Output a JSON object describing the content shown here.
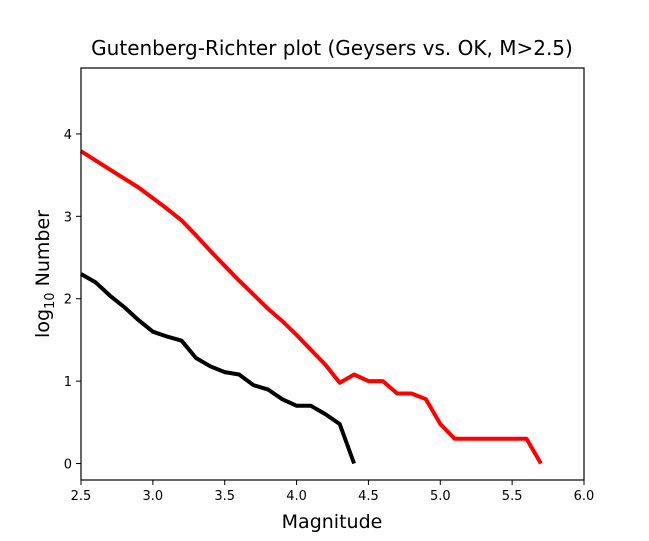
{
  "chart_data": {
    "type": "line",
    "title": "Gutenberg-Richter plot (Geysers vs. OK, M>2.5)",
    "xlabel": "Magnitude",
    "ylabel": {
      "base": "log",
      "subscript": "10",
      "rest": " Number"
    },
    "xlim": [
      2.5,
      6.0
    ],
    "ylim": [
      -0.2,
      4.8
    ],
    "xticks": [
      "2.5",
      "3.0",
      "3.5",
      "4.0",
      "4.5",
      "5.0",
      "5.5",
      "6.0"
    ],
    "yticks": [
      "0",
      "1",
      "2",
      "3",
      "4"
    ],
    "grid": false,
    "legend": "none",
    "series": [
      {
        "color": "#ff0000",
        "x": [
          2.5,
          2.6,
          2.7,
          2.8,
          2.9,
          3.0,
          3.1,
          3.2,
          3.3,
          3.4,
          3.5,
          3.6,
          3.7,
          3.8,
          3.9,
          4.0,
          4.1,
          4.2,
          4.3,
          4.4,
          4.5,
          4.6,
          4.7,
          4.8,
          4.9,
          5.0,
          5.1,
          5.2,
          5.3,
          5.4,
          5.5,
          5.6,
          5.7
        ],
        "y": [
          3.79,
          3.68,
          3.57,
          3.46,
          3.35,
          3.22,
          3.09,
          2.95,
          2.77,
          2.58,
          2.4,
          2.22,
          2.05,
          1.88,
          1.73,
          1.56,
          1.38,
          1.2,
          0.98,
          1.08,
          1.0,
          1.0,
          0.85,
          0.85,
          0.78,
          0.48,
          0.3,
          0.3,
          0.3,
          0.3,
          0.3,
          0.3,
          0.0
        ]
      },
      {
        "color": "#000000",
        "x": [
          2.5,
          2.6,
          2.7,
          2.8,
          2.9,
          3.0,
          3.1,
          3.2,
          3.3,
          3.4,
          3.5,
          3.6,
          3.7,
          3.8,
          3.9,
          4.0,
          4.1,
          4.2,
          4.3,
          4.4
        ],
        "y": [
          2.3,
          2.2,
          2.04,
          1.9,
          1.74,
          1.6,
          1.54,
          1.49,
          1.28,
          1.18,
          1.11,
          1.08,
          0.95,
          0.9,
          0.78,
          0.7,
          0.7,
          0.6,
          0.48,
          0.0
        ]
      }
    ]
  }
}
